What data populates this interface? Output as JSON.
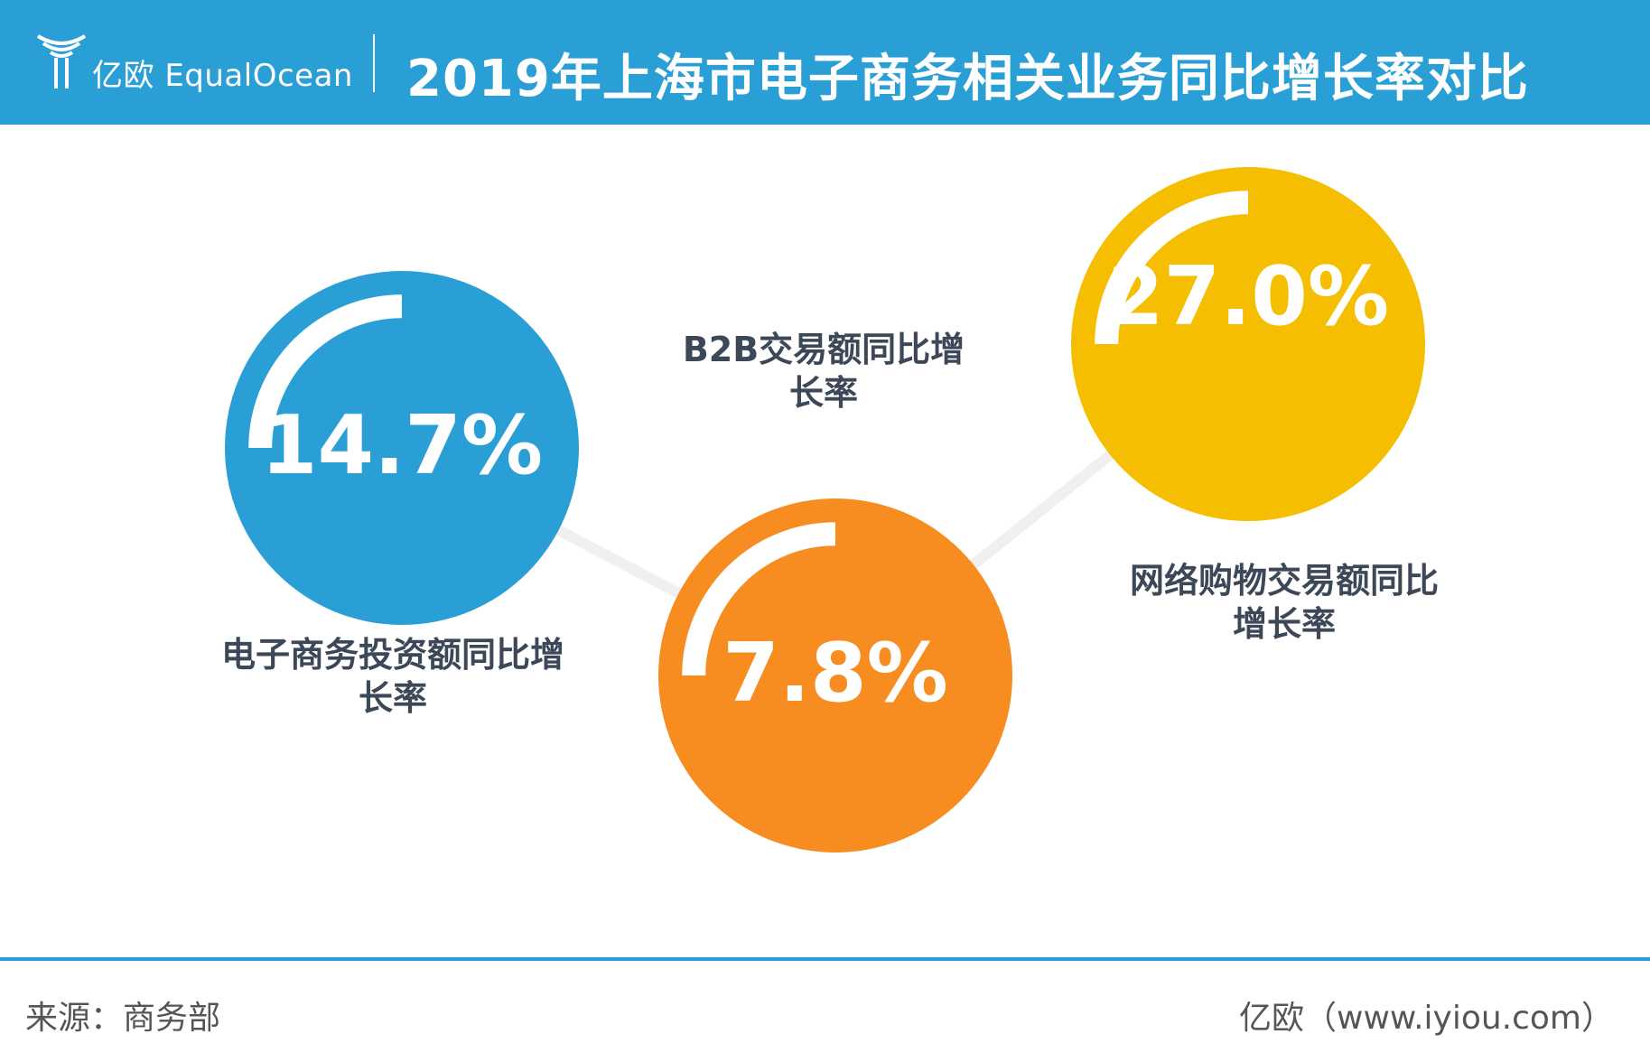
{
  "header": {
    "brand_cn": "亿欧",
    "brand_en": "EqualOcean",
    "title": "2019年上海市电子商务相关业务同比增长率对比"
  },
  "footer": {
    "source": "来源：商务部",
    "site": "亿欧（www.iyiou.com）"
  },
  "colors": {
    "header_bg": "#2a9fd6",
    "circle_blue": "#2a9fd6",
    "circle_orange": "#f78c21",
    "circle_yellow": "#f5be00",
    "label_text": "#3c4858",
    "connector": "#f0f0f0"
  },
  "chart_data": {
    "type": "bubble",
    "title": "2019年上海市电子商务相关业务同比增长率对比",
    "unit": "%",
    "items": [
      {
        "label_lines": [
          "电子商务投资额同比增",
          "长率"
        ],
        "value": 14.7,
        "value_text": "14.7%",
        "color": "#2a9fd6"
      },
      {
        "label_lines": [
          "B2B交易额同比增",
          "长率"
        ],
        "value": 7.8,
        "value_text": "7.8%",
        "color": "#f78c21"
      },
      {
        "label_lines": [
          "网络购物交易额同比",
          "增长率"
        ],
        "value": 27.0,
        "value_text": "27.0%",
        "color": "#f5be00"
      }
    ]
  }
}
